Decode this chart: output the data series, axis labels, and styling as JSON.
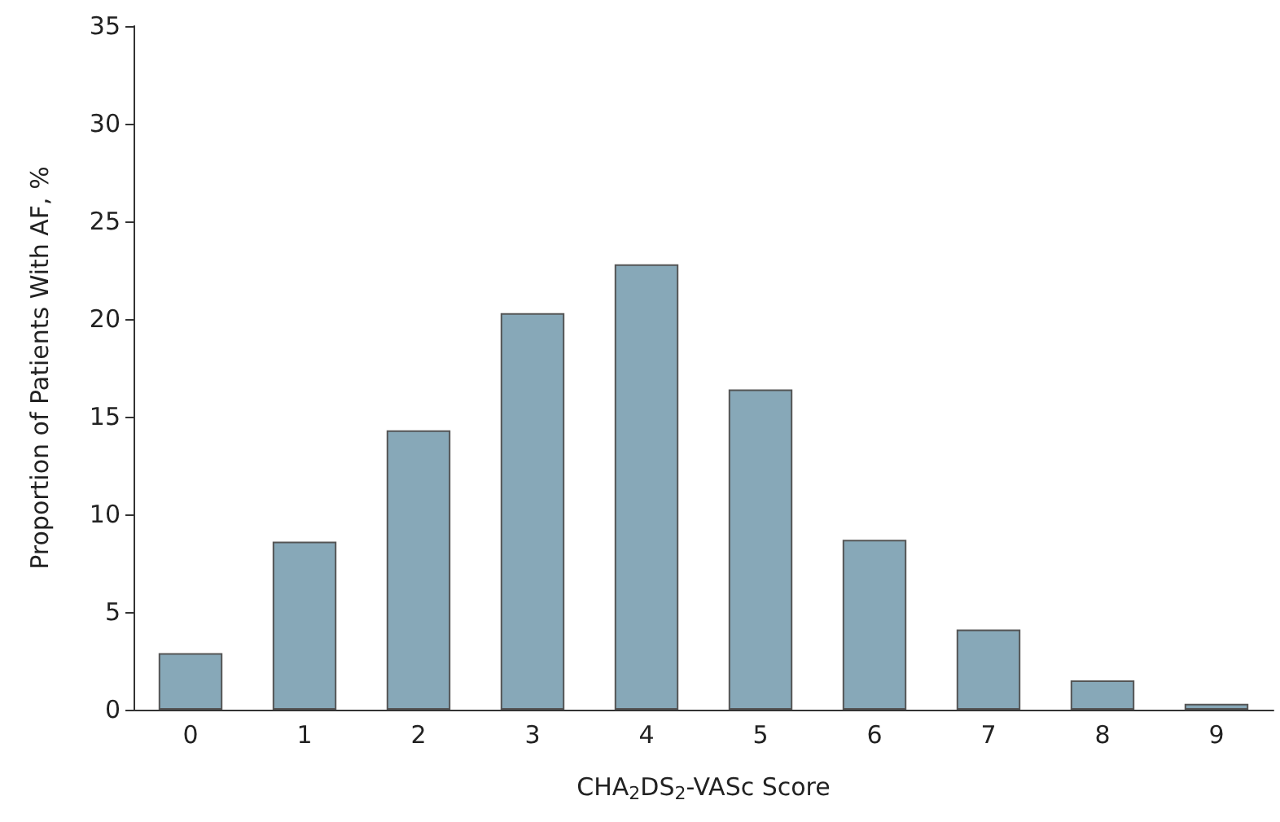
{
  "chart_data": {
    "type": "bar",
    "xlabel": "CHA$_{2}$DS$_{2}$-VASc Score",
    "ylabel": "Proportion of Patients With AF, %",
    "categories": [
      "0",
      "1",
      "2",
      "3",
      "4",
      "5",
      "6",
      "7",
      "8",
      "9"
    ],
    "values": [
      2.9,
      8.6,
      14.3,
      20.3,
      22.8,
      16.4,
      8.7,
      4.1,
      1.5,
      0.3
    ],
    "color": "#87a8b8",
    "ylim": [
      0,
      35
    ],
    "yticks": [
      0,
      5,
      10,
      15,
      20,
      25,
      30,
      35
    ],
    "grid": false
  }
}
